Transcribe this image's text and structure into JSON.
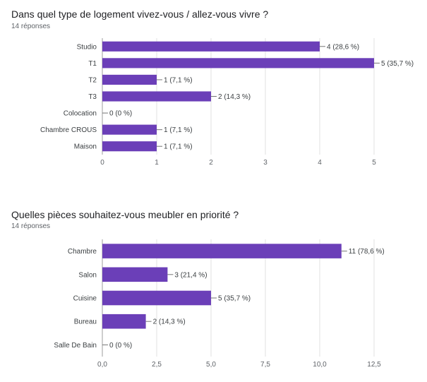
{
  "colors": {
    "bar": "#6b3fb8",
    "grid": "#e0e0e0",
    "axis": "#9e9e9e",
    "leader": "#757575"
  },
  "chart_data": [
    {
      "type": "bar",
      "orientation": "horizontal",
      "title": "Dans quel type de logement vivez-vous / allez-vous vivre ?",
      "subtitle": "14 réponses",
      "categories": [
        "Studio",
        "T1",
        "T2",
        "T3",
        "Colocation",
        "Chambre CROUS",
        "Maison"
      ],
      "values": [
        4,
        5,
        1,
        2,
        0,
        1,
        1
      ],
      "data_labels": [
        "4 (28,6 %)",
        "5 (35,7 %)",
        "1 (7,1 %)",
        "2 (14,3 %)",
        "0 (0 %)",
        "1 (7,1 %)",
        "1 (7,1 %)"
      ],
      "xlim": [
        0,
        5
      ],
      "ticks": [
        0,
        1,
        2,
        3,
        4,
        5
      ],
      "tick_labels": [
        "0",
        "1",
        "2",
        "3",
        "4",
        "5"
      ],
      "grid": true,
      "xlabel": "",
      "ylabel": ""
    },
    {
      "type": "bar",
      "orientation": "horizontal",
      "title": "Quelles pièces souhaitez-vous meubler en priorité ?",
      "subtitle": "14 réponses",
      "categories": [
        "Chambre",
        "Salon",
        "Cuisine",
        "Bureau",
        "Salle De Bain"
      ],
      "values": [
        11,
        3,
        5,
        2,
        0
      ],
      "data_labels": [
        "11 (78,6 %)",
        "3 (21,4 %)",
        "5 (35,7 %)",
        "2 (14,3 %)",
        "0 (0 %)"
      ],
      "xlim": [
        0,
        12.5
      ],
      "ticks": [
        0,
        2.5,
        5,
        7.5,
        10,
        12.5
      ],
      "tick_labels": [
        "0,0",
        "2,5",
        "5,0",
        "7,5",
        "10,0",
        "12,5"
      ],
      "grid": true,
      "xlabel": "",
      "ylabel": ""
    }
  ]
}
